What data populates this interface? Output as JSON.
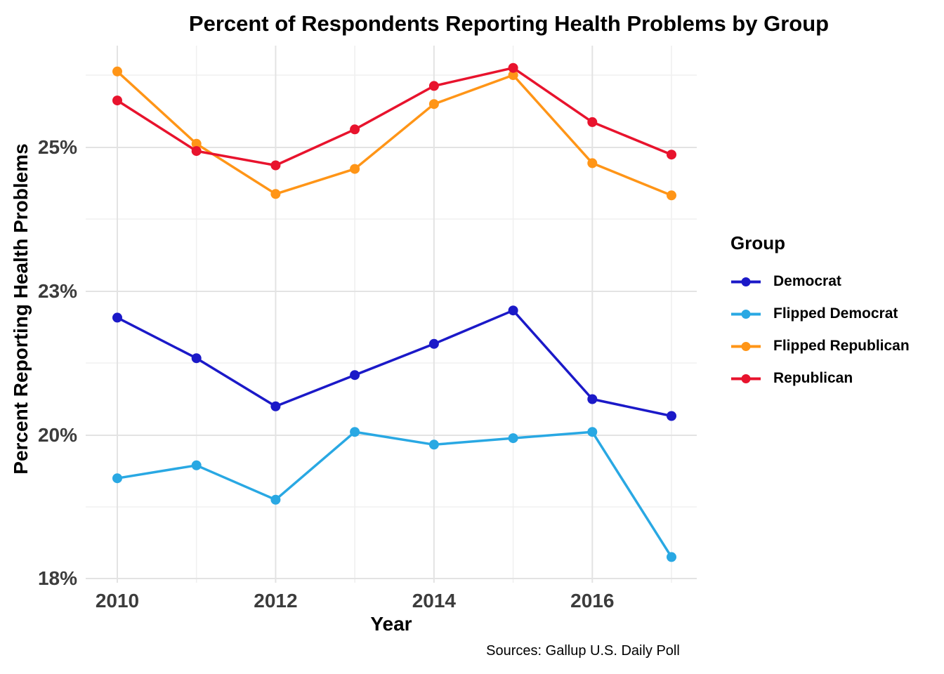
{
  "title": "Percent of Respondents Reporting Health Problems by Group",
  "source": "Sources: Gallup U.S. Daily Poll",
  "x_axis": {
    "label": "Year",
    "ticks": [
      {
        "label": "2010",
        "value": 2010
      },
      {
        "label": "2012",
        "value": 2012
      },
      {
        "label": "2014",
        "value": 2014
      },
      {
        "label": "2016",
        "value": 2016
      }
    ]
  },
  "y_axis": {
    "label": "Percent Reporting Health Problems",
    "ticks": [
      {
        "label": "25%",
        "value": 25
      },
      {
        "label": "23%",
        "value": 23
      },
      {
        "label": "20%",
        "value": 20
      },
      {
        "label": "18%",
        "value": 18
      }
    ],
    "minor_gridline_values": [
      26,
      24,
      21.5,
      19
    ]
  },
  "legend": {
    "title": "Group",
    "entries": [
      {
        "label": "Democrat",
        "color": "#1B19C8"
      },
      {
        "label": "Flipped Democrat",
        "color": "#29A8E3"
      },
      {
        "label": "Flipped Republican",
        "color": "#FF9517"
      },
      {
        "label": "Republican",
        "color": "#E8132D"
      }
    ]
  },
  "chart_data": {
    "type": "line",
    "title": "Percent of Respondents Reporting Health Problems by Group",
    "xlabel": "Year",
    "ylabel": "Percent Reporting Health Problems",
    "x": [
      2010,
      2011,
      2012,
      2013,
      2014,
      2015,
      2016,
      2017
    ],
    "x_tick_values": [
      2010,
      2012,
      2014,
      2016
    ],
    "y_tick_labels": [
      "25%",
      "23%",
      "20%",
      "18%"
    ],
    "y_major_breaks": [
      25,
      23,
      20,
      18
    ],
    "y_minor_breaks": [
      26,
      24,
      21.5,
      19
    ],
    "axis_note": "major y breaks 18/20/23/25 are rendered evenly spaced with minor gridlines at midpoints; grid on; legend at right",
    "series": [
      {
        "name": "Democrat",
        "color": "#1B19C8",
        "values": [
          22.45,
          21.6,
          20.6,
          21.25,
          21.9,
          22.6,
          20.75,
          20.4
        ]
      },
      {
        "name": "Flipped Democrat",
        "color": "#29A8E3",
        "values": [
          19.4,
          19.58,
          19.1,
          20.07,
          19.87,
          19.96,
          20.07,
          18.3
        ]
      },
      {
        "name": "Flipped Republican",
        "color": "#FF9517",
        "values": [
          26.05,
          25.05,
          24.35,
          24.7,
          25.6,
          26.0,
          24.78,
          24.33
        ]
      },
      {
        "name": "Republican",
        "color": "#E8132D",
        "values": [
          25.65,
          24.95,
          24.75,
          25.25,
          25.85,
          26.1,
          25.35,
          24.9
        ]
      }
    ]
  },
  "colors": {
    "background": "#FFFFFF",
    "grid_major": "#E3E3E3",
    "grid_minor": "#F0F0F0",
    "tick_text": "#3C3C3C",
    "title_text": "#000000"
  }
}
